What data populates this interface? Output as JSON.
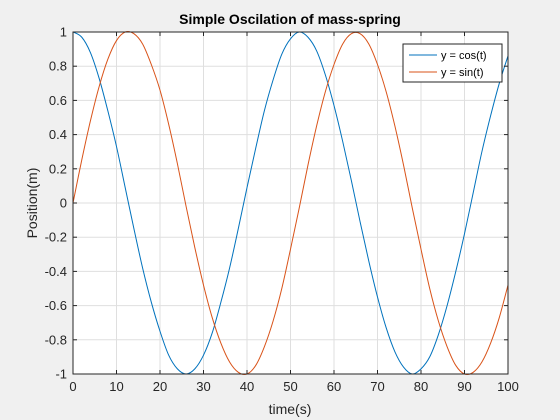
{
  "chart_data": {
    "type": "line",
    "title": "Simple Oscilation of mass-spring",
    "xlabel": "time(s)",
    "ylabel": "Position(m)",
    "xlim": [
      0,
      100
    ],
    "ylim": [
      -1,
      1
    ],
    "xticks": [
      "0",
      "10",
      "20",
      "30",
      "40",
      "50",
      "60",
      "70",
      "80",
      "90",
      "100"
    ],
    "yticks": [
      "-1",
      "-0.8",
      "-0.6",
      "-0.4",
      "-0.2",
      "0",
      "0.2",
      "0.4",
      "0.6",
      "0.8",
      "1"
    ],
    "grid": true,
    "legend_position": "top-right",
    "series": [
      {
        "name": "y = cos(t)",
        "color": "#0072BD",
        "x": [
          0,
          2,
          4,
          6,
          8,
          10,
          12,
          14,
          16,
          18,
          20,
          22,
          24,
          26,
          28,
          30,
          32,
          34,
          36,
          38,
          40,
          42,
          44,
          46,
          48,
          50,
          52,
          54,
          56,
          58,
          60,
          62,
          64,
          66,
          68,
          70,
          72,
          74,
          76,
          78,
          80,
          82,
          84,
          86,
          88,
          90,
          92,
          94,
          96,
          98,
          100
        ],
        "values": [
          1,
          0.97,
          0.88,
          0.73,
          0.54,
          0.33,
          0.09,
          -0.15,
          -0.38,
          -0.58,
          -0.75,
          -0.89,
          -0.97,
          -1,
          -0.97,
          -0.89,
          -0.76,
          -0.58,
          -0.38,
          -0.15,
          0.09,
          0.32,
          0.54,
          0.72,
          0.87,
          0.96,
          1,
          0.97,
          0.89,
          0.75,
          0.57,
          0.36,
          0.13,
          -0.11,
          -0.34,
          -0.55,
          -0.73,
          -0.87,
          -0.96,
          -1,
          -0.97,
          -0.9,
          -0.77,
          -0.6,
          -0.4,
          -0.18,
          0.06,
          0.3,
          0.51,
          0.7,
          0.86
        ]
      },
      {
        "name": "y = sin(t)",
        "color": "#D95319",
        "x": [
          0,
          2,
          4,
          6,
          8,
          10,
          12,
          14,
          16,
          18,
          20,
          22,
          24,
          26,
          28,
          30,
          32,
          34,
          36,
          38,
          40,
          42,
          44,
          46,
          48,
          50,
          52,
          54,
          56,
          58,
          60,
          62,
          64,
          66,
          68,
          70,
          72,
          74,
          76,
          78,
          80,
          82,
          84,
          86,
          88,
          90,
          92,
          94,
          96,
          98,
          100
        ],
        "values": [
          0,
          0.25,
          0.48,
          0.68,
          0.84,
          0.95,
          1,
          0.99,
          0.93,
          0.81,
          0.66,
          0.46,
          0.23,
          -0.02,
          -0.26,
          -0.48,
          -0.67,
          -0.82,
          -0.93,
          -0.99,
          -1,
          -0.95,
          -0.84,
          -0.69,
          -0.5,
          -0.27,
          -0.03,
          0.22,
          0.45,
          0.65,
          0.81,
          0.93,
          0.99,
          0.99,
          0.93,
          0.81,
          0.65,
          0.45,
          0.22,
          -0.03,
          -0.27,
          -0.5,
          -0.69,
          -0.84,
          -0.95,
          -1,
          -0.99,
          -0.93,
          -0.82,
          -0.67,
          -0.48
        ]
      }
    ]
  }
}
